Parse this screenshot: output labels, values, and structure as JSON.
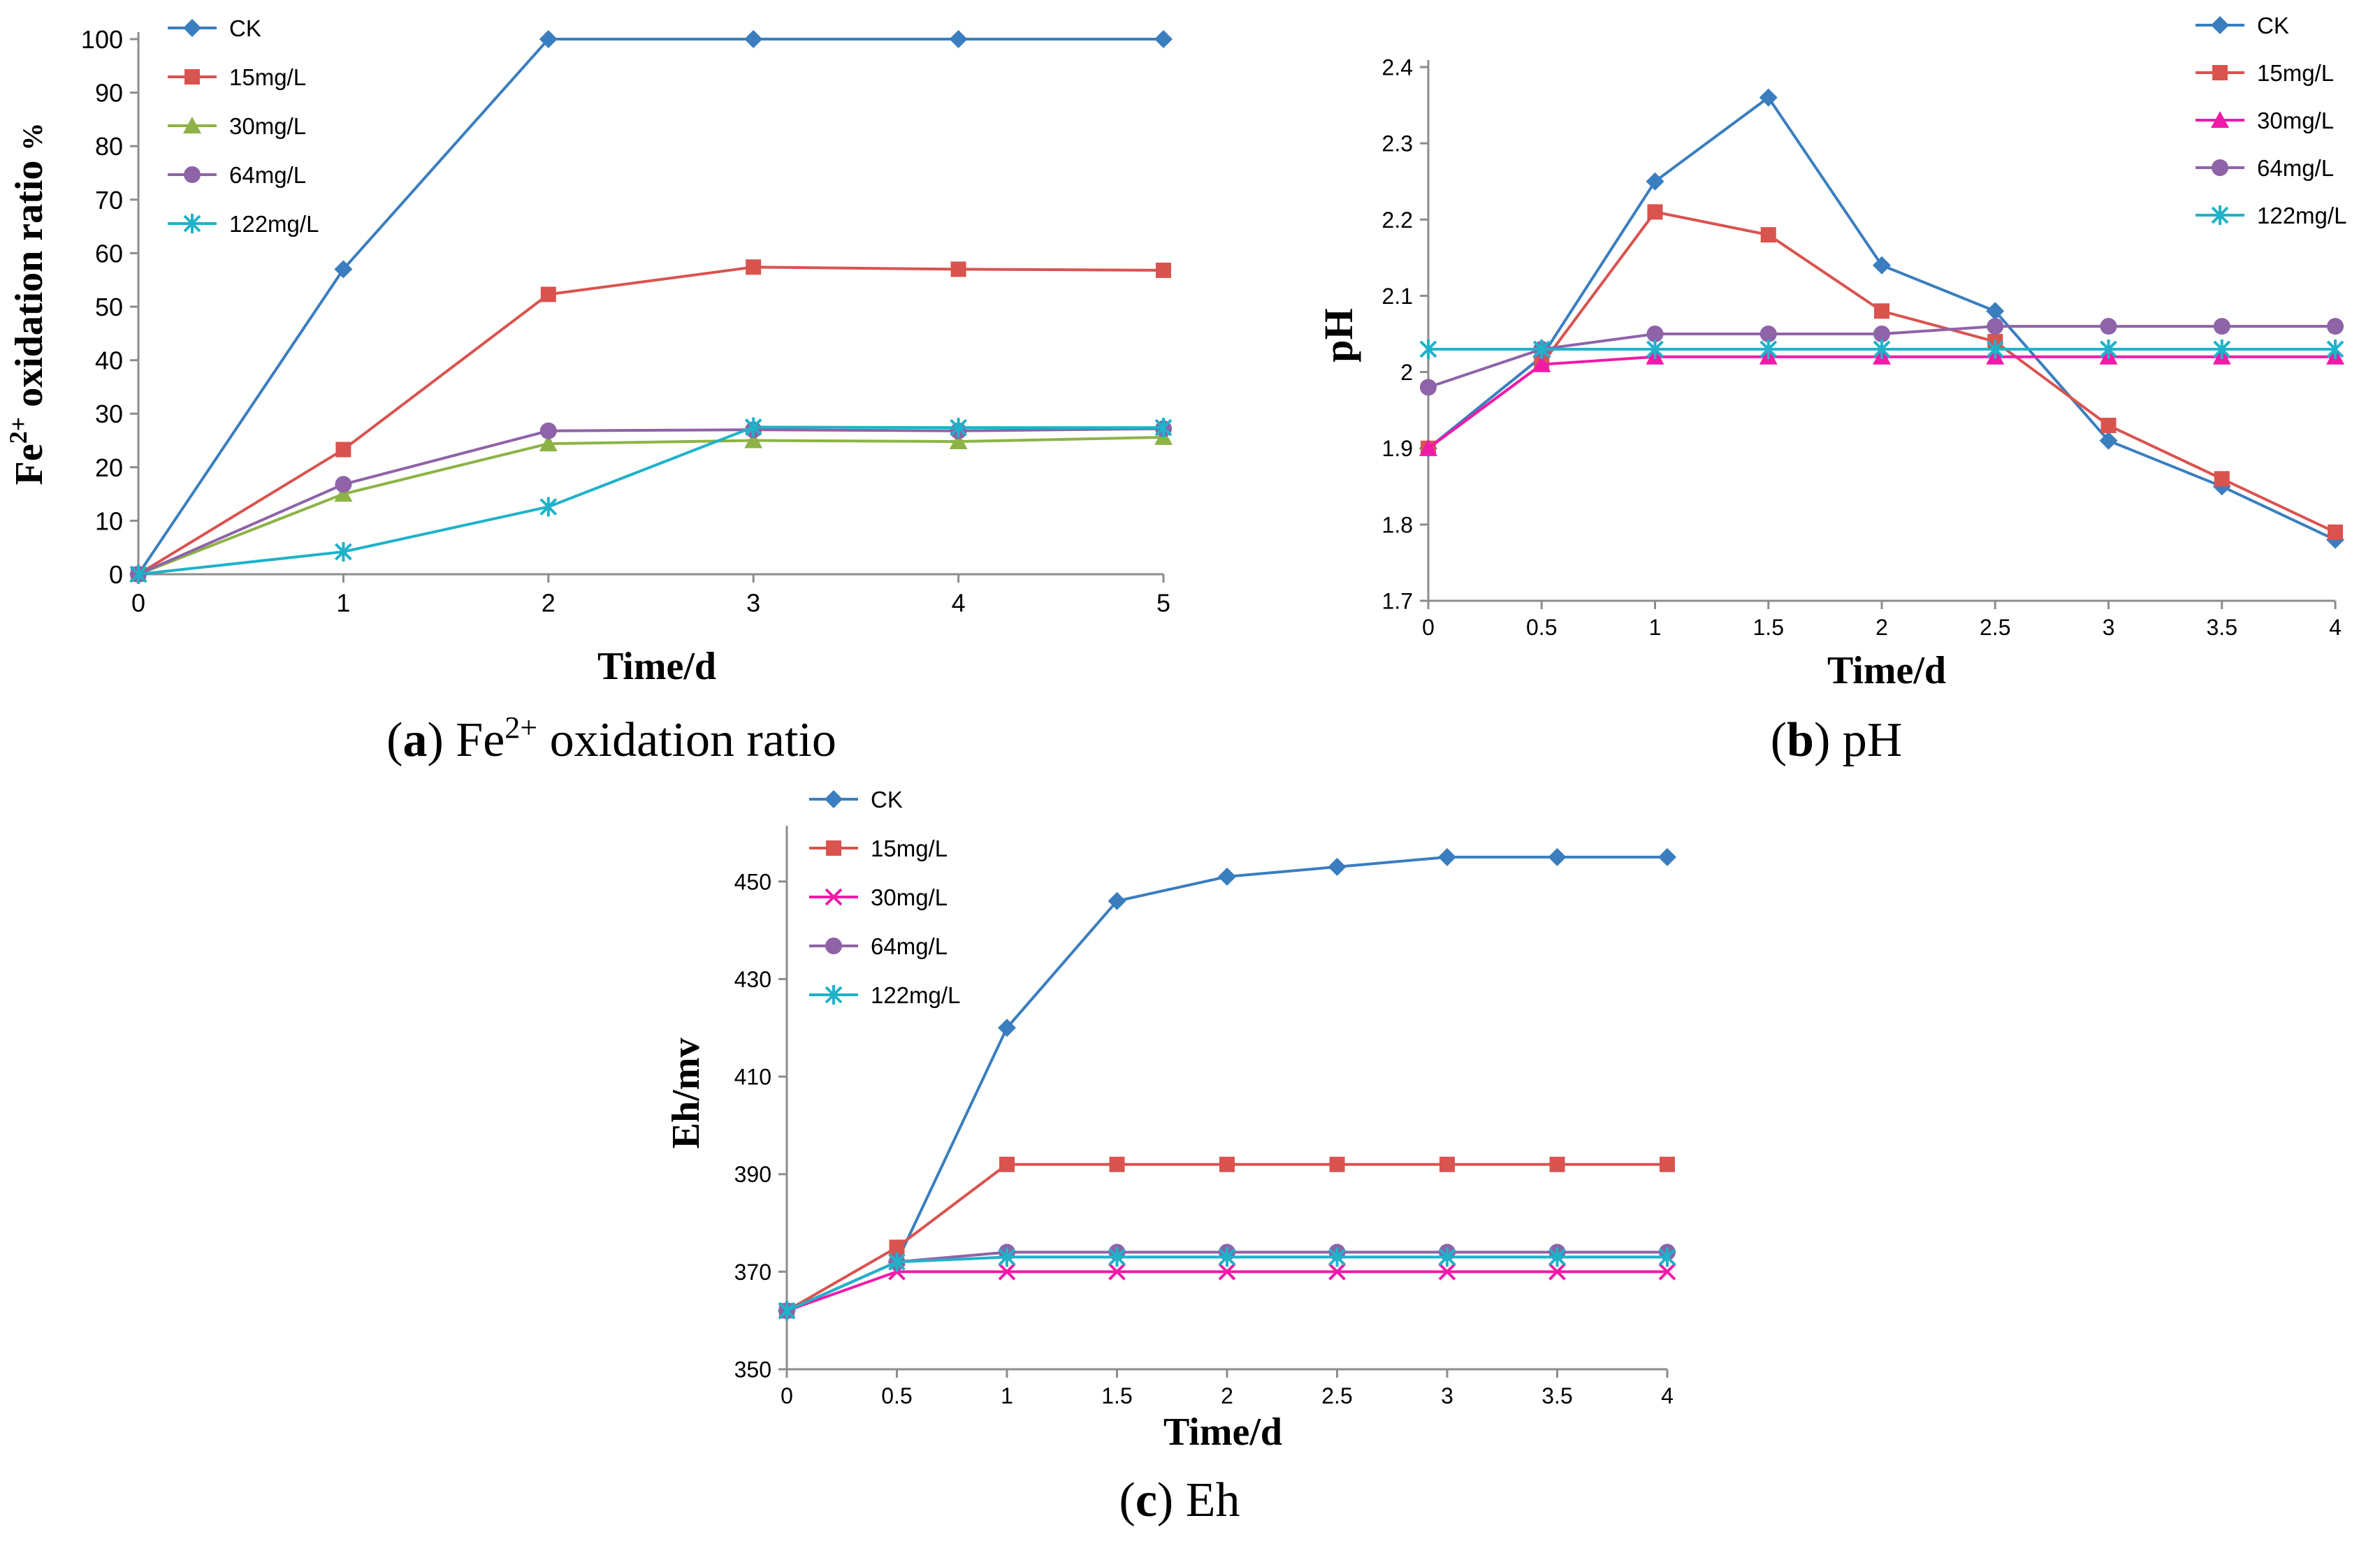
{
  "colors": {
    "CK": "#3a7ebf",
    "15mg/L": "#d9534f",
    "30mg/L_a": "#8db346",
    "30mg/L": "#f01aa8",
    "64mg/L": "#8e63a8",
    "122mg/L": "#1fb2c9",
    "axis": "#8c8c8c"
  },
  "chart_data": [
    {
      "id": "a",
      "type": "line",
      "caption": {
        "letter": "a",
        "text": "Fe2+ oxidation ratio"
      },
      "ylabel": "Fe2+ oxidation ratio %",
      "xlabel": "Time/d",
      "x": [
        0,
        1,
        2,
        3,
        4,
        5
      ],
      "xticks": [
        "0",
        "1",
        "2",
        "3",
        "4",
        "5"
      ],
      "yticks": [
        "0",
        "10",
        "20",
        "30",
        "40",
        "50",
        "60",
        "70",
        "80",
        "90",
        "100"
      ],
      "ylim": [
        0,
        100
      ],
      "xlim": [
        0,
        5
      ],
      "series": [
        {
          "name": "CK",
          "marker": "diamond",
          "color": "CK",
          "values": [
            0,
            57,
            100,
            100,
            100,
            100
          ]
        },
        {
          "name": "15mg/L",
          "marker": "square",
          "color": "15mg/L",
          "values": [
            0,
            23.3,
            52.3,
            57.4,
            57,
            56.8
          ]
        },
        {
          "name": "30mg/L",
          "marker": "triangle",
          "color": "30mg/L_a",
          "values": [
            0,
            15,
            24.4,
            25,
            24.8,
            25.6
          ]
        },
        {
          "name": "64mg/L",
          "marker": "circle",
          "color": "64mg/L",
          "values": [
            0,
            16.8,
            26.8,
            27,
            26.8,
            27.2
          ]
        },
        {
          "name": "122mg/L",
          "marker": "star",
          "color": "122mg/L",
          "values": [
            0,
            4.2,
            12.6,
            27.5,
            27.4,
            27.4
          ]
        }
      ]
    },
    {
      "id": "b",
      "type": "line",
      "caption": {
        "letter": "b",
        "text": "pH"
      },
      "ylabel": "pH",
      "xlabel": "Time/d",
      "x": [
        0,
        0.5,
        1,
        1.5,
        2,
        2.5,
        3,
        3.5,
        4
      ],
      "xticks": [
        "0",
        "0.5",
        "1",
        "1.5",
        "2",
        "2.5",
        "3",
        "3.5",
        "4"
      ],
      "yticks": [
        "1.7",
        "1.8",
        "1.9",
        "2",
        "2.1",
        "2.2",
        "2.3",
        "2.4"
      ],
      "ylim": [
        1.7,
        2.4
      ],
      "xlim": [
        0,
        4
      ],
      "series": [
        {
          "name": "CK",
          "marker": "diamond",
          "color": "CK",
          "values": [
            1.9,
            2.02,
            2.25,
            2.36,
            2.14,
            2.08,
            1.91,
            1.85,
            1.78
          ]
        },
        {
          "name": "15mg/L",
          "marker": "square",
          "color": "15mg/L",
          "values": [
            1.9,
            2.01,
            2.21,
            2.18,
            2.08,
            2.04,
            1.93,
            1.86,
            1.79
          ]
        },
        {
          "name": "30mg/L",
          "marker": "triangle",
          "color": "30mg/L",
          "values": [
            1.9,
            2.01,
            2.02,
            2.02,
            2.02,
            2.02,
            2.02,
            2.02,
            2.02
          ]
        },
        {
          "name": "64mg/L",
          "marker": "circle",
          "color": "64mg/L",
          "values": [
            1.98,
            2.03,
            2.05,
            2.05,
            2.05,
            2.06,
            2.06,
            2.06,
            2.06
          ]
        },
        {
          "name": "122mg/L",
          "marker": "star",
          "color": "122mg/L",
          "values": [
            2.03,
            2.03,
            2.03,
            2.03,
            2.03,
            2.03,
            2.03,
            2.03,
            2.03
          ]
        }
      ]
    },
    {
      "id": "c",
      "type": "line",
      "caption": {
        "letter": "c",
        "text": "Eh"
      },
      "ylabel": "Eh/mv",
      "xlabel": "Time/d",
      "x": [
        0,
        0.5,
        1,
        1.5,
        2,
        2.5,
        3,
        3.5,
        4
      ],
      "xticks": [
        "0",
        "0.5",
        "1",
        "1.5",
        "2",
        "2.5",
        "3",
        "3.5",
        "4"
      ],
      "yticks": [
        "350",
        "370",
        "390",
        "410",
        "430",
        "450"
      ],
      "ylim": [
        350,
        460
      ],
      "xlim": [
        0,
        4
      ],
      "series": [
        {
          "name": "CK",
          "marker": "diamond",
          "color": "CK",
          "values": [
            362,
            372,
            420,
            446,
            451,
            453,
            455,
            455,
            455
          ]
        },
        {
          "name": "15mg/L",
          "marker": "square",
          "color": "15mg/L",
          "values": [
            362,
            375,
            392,
            392,
            392,
            392,
            392,
            392,
            392
          ]
        },
        {
          "name": "30mg/L",
          "marker": "x",
          "color": "30mg/L",
          "values": [
            362,
            370,
            370,
            370,
            370,
            370,
            370,
            370,
            370
          ]
        },
        {
          "name": "64mg/L",
          "marker": "circle",
          "color": "64mg/L",
          "values": [
            362,
            372,
            374,
            374,
            374,
            374,
            374,
            374,
            374
          ]
        },
        {
          "name": "122mg/L",
          "marker": "star",
          "color": "122mg/L",
          "values": [
            362,
            372,
            373,
            373,
            373,
            373,
            373,
            373,
            373
          ]
        }
      ]
    }
  ]
}
